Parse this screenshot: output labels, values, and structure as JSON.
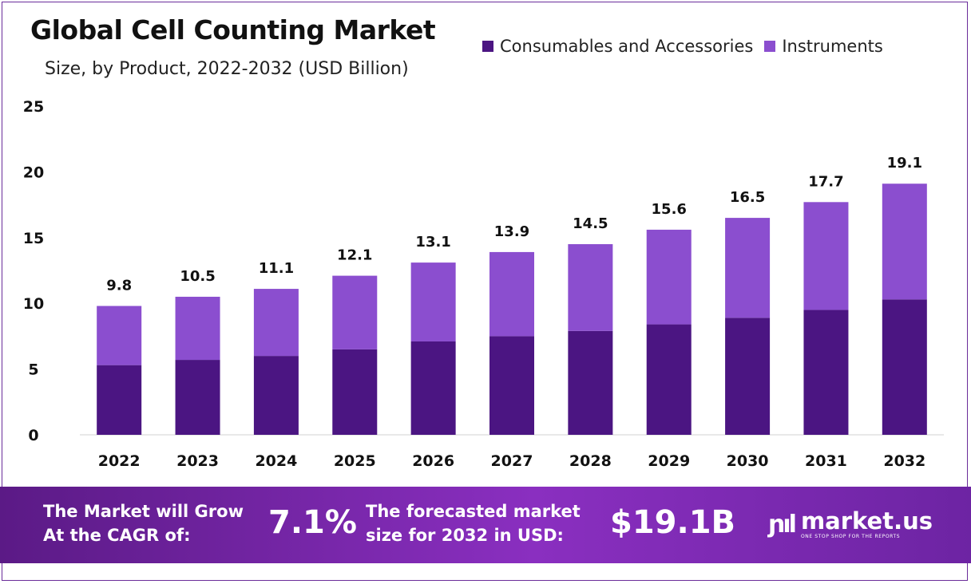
{
  "header": {
    "title": "Global Cell Counting Market",
    "subtitle": "Size, by Product, 2022-2032 (USD Billion)"
  },
  "chart_data": {
    "type": "bar",
    "stacked": true,
    "title": "Global Cell Counting Market",
    "subtitle": "Size, by Product, 2022-2032 (USD Billion)",
    "categories": [
      "2022",
      "2023",
      "2024",
      "2025",
      "2026",
      "2027",
      "2028",
      "2029",
      "2030",
      "2031",
      "2032"
    ],
    "series": [
      {
        "name": "Consumables and Accessories",
        "color": "#4b1582",
        "values": [
          5.3,
          5.7,
          6.0,
          6.5,
          7.1,
          7.5,
          7.9,
          8.4,
          8.9,
          9.5,
          10.3
        ]
      },
      {
        "name": "Instruments",
        "color": "#8b4ecf",
        "values": [
          4.5,
          4.8,
          5.1,
          5.6,
          6.0,
          6.4,
          6.6,
          7.2,
          7.6,
          8.2,
          8.8
        ]
      }
    ],
    "totals": [
      "9.8",
      "10.5",
      "11.1",
      "12.1",
      "13.1",
      "13.9",
      "14.5",
      "15.6",
      "16.5",
      "17.7",
      "19.1"
    ],
    "ylim": [
      0,
      25
    ],
    "yticks": [
      "0",
      "5",
      "10",
      "15",
      "20",
      "25"
    ],
    "xlabel": "",
    "ylabel": "",
    "grid": false,
    "legend_position": "top-right"
  },
  "footer": {
    "cagr_label_line1": "The Market will Grow",
    "cagr_label_line2": "At the CAGR of:",
    "cagr_value": "7.1%",
    "forecast_label_line1": "The forecasted market",
    "forecast_label_line2": "size for 2032 in USD:",
    "forecast_value": "$19.1B",
    "brand_name": "market.us",
    "brand_tagline": "ONE STOP SHOP FOR THE REPORTS"
  }
}
